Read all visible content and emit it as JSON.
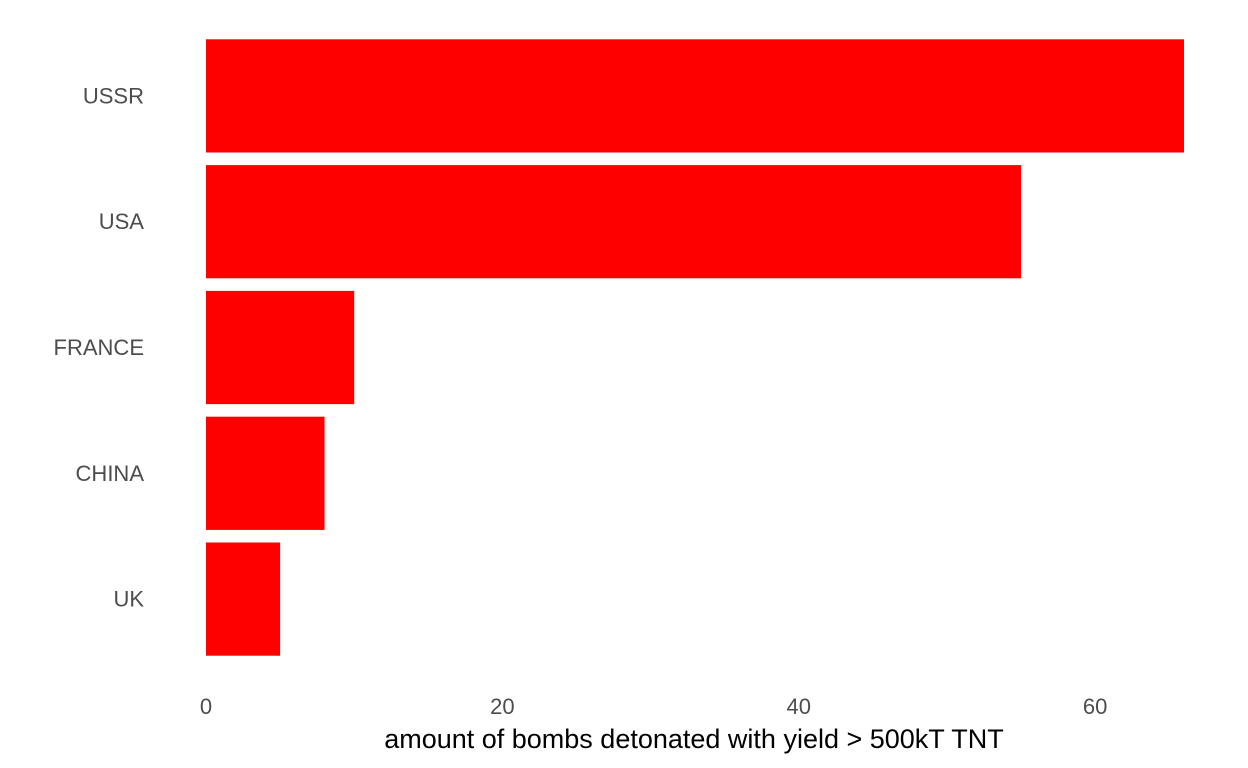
{
  "chart_data": {
    "type": "bar",
    "orientation": "horizontal",
    "categories": [
      "USSR",
      "USA",
      "FRANCE",
      "CHINA",
      "UK"
    ],
    "values": [
      66,
      55,
      10,
      8,
      5
    ],
    "title": "",
    "xlabel": "amount of bombs detonated with yield > 500kT TNT",
    "ylabel": "",
    "xlim": [
      0,
      66
    ],
    "xticks": [
      0,
      20,
      40,
      60
    ],
    "grid": false,
    "bar_color": "#ff0000"
  }
}
